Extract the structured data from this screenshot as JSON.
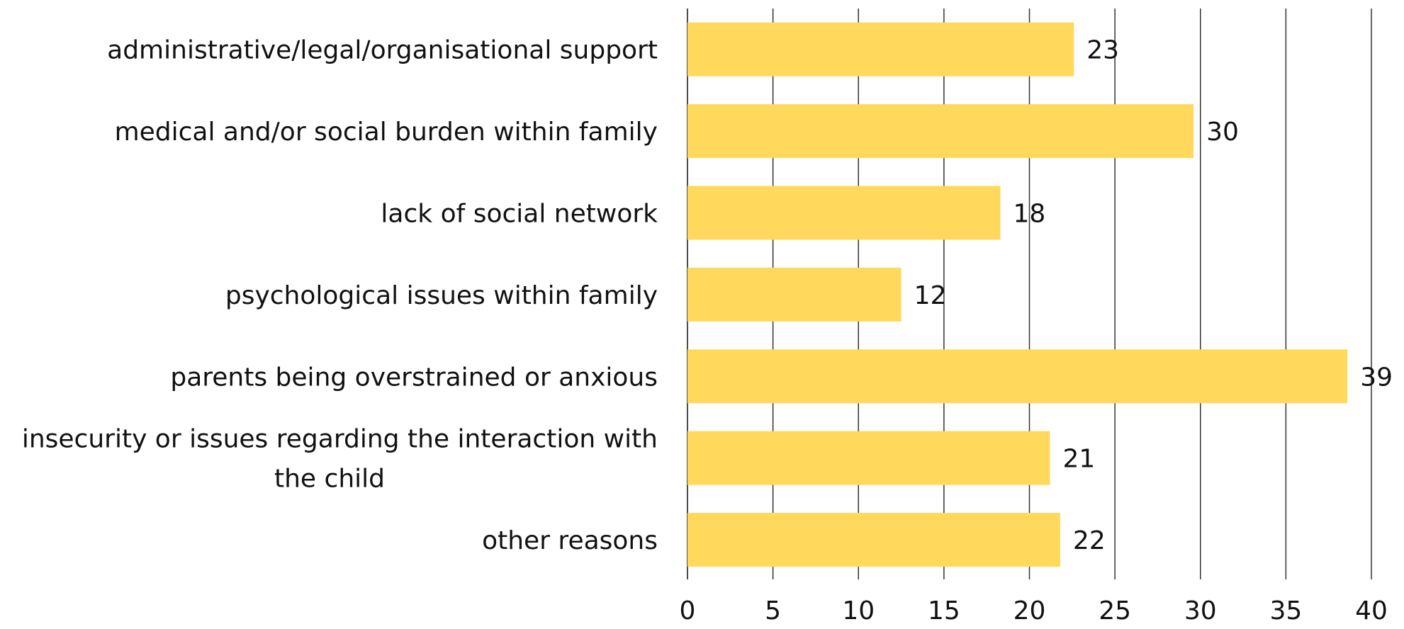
{
  "chart_data": {
    "type": "bar",
    "orientation": "horizontal",
    "categories": [
      [
        "administrative/legal/organisational support"
      ],
      [
        "medical and/or social burden within family"
      ],
      [
        "lack of social network"
      ],
      [
        "psychological issues within family"
      ],
      [
        "parents being overstrained or anxious"
      ],
      [
        "insecurity or issues regarding the interaction with",
        "the child"
      ],
      [
        "other reasons"
      ]
    ],
    "values": [
      22.6,
      29.6,
      18.3,
      12.5,
      38.6,
      21.2,
      21.8
    ],
    "value_labels": [
      "23",
      "30",
      "18",
      "12",
      "39",
      "21",
      "22"
    ],
    "xticks": [
      "0",
      "5",
      "10",
      "15",
      "20",
      "25",
      "30",
      "35",
      "40"
    ],
    "xlim": [
      0,
      40
    ],
    "grid": true,
    "legend": "none",
    "bar_color": "#FFD85C",
    "grid_color": "#333333",
    "title": "",
    "xlabel": "",
    "ylabel": ""
  }
}
